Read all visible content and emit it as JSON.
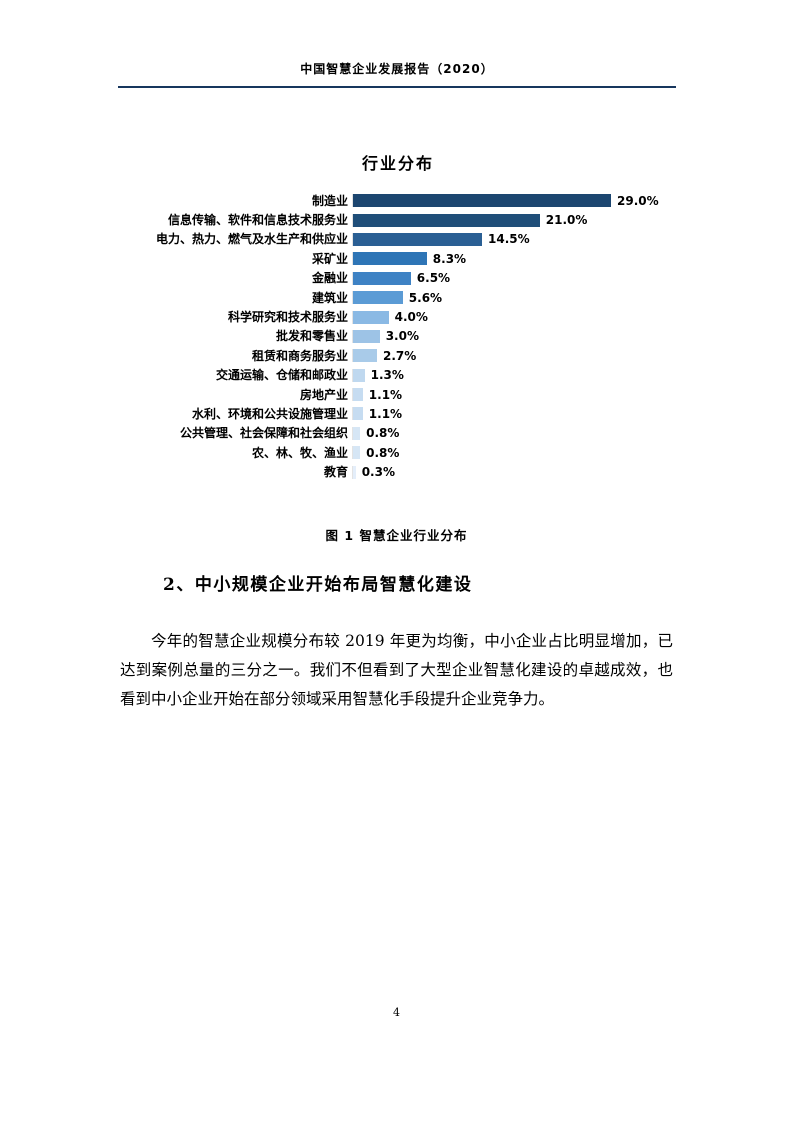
{
  "header": {
    "title": "中国智慧企业发展报告（2020）"
  },
  "chart_data": {
    "type": "bar",
    "orientation": "horizontal",
    "title": "行业分布",
    "categories": [
      "制造业",
      "信息传输、软件和信息技术服务业",
      "电力、热力、燃气及水生产和供应业",
      "采矿业",
      "金融业",
      "建筑业",
      "科学研究和技术服务业",
      "批发和零售业",
      "租赁和商务服务业",
      "交通运输、仓储和邮政业",
      "房地产业",
      "水利、环境和公共设施管理业",
      "公共管理、社会保障和社会组织",
      "农、林、牧、渔业",
      "教育"
    ],
    "values": [
      29.0,
      21.0,
      14.5,
      8.3,
      6.5,
      5.6,
      4.0,
      3.0,
      2.7,
      1.3,
      1.1,
      1.1,
      0.8,
      0.8,
      0.3
    ],
    "value_labels": [
      "29.0%",
      "21.0%",
      "14.5%",
      "8.3%",
      "6.5%",
      "5.6%",
      "4.0%",
      "3.0%",
      "2.7%",
      "1.3%",
      "1.1%",
      "1.1%",
      "0.8%",
      "0.8%",
      "0.3%"
    ],
    "bar_colors": [
      "#1c4670",
      "#1f4e79",
      "#2a5f94",
      "#2e75b6",
      "#3e82c4",
      "#5b9bd5",
      "#8ab9e4",
      "#9dc3e6",
      "#a9cbe9",
      "#bfd8ef",
      "#c6dcf1",
      "#c6dcf1",
      "#d6e6f5",
      "#d6e6f5",
      "#e4eefa"
    ],
    "xlim": [
      0,
      32
    ],
    "grid": false,
    "legend": false
  },
  "figure_caption": "图 1 智慧企业行业分布",
  "section": {
    "heading": "2、中小规模企业开始布局智慧化建设",
    "paragraph": "今年的智慧企业规模分布较 2019 年更为均衡，中小企业占比明显增加，已达到案例总量的三分之一。我们不但看到了大型企业智慧化建设的卓越成效，也看到中小企业开始在部分领域采用智慧化手段提升企业竞争力。"
  },
  "footer": {
    "page_number": "4"
  },
  "colors": {
    "header_rule": "#17365d",
    "text": "#000000",
    "background": "#ffffff"
  }
}
